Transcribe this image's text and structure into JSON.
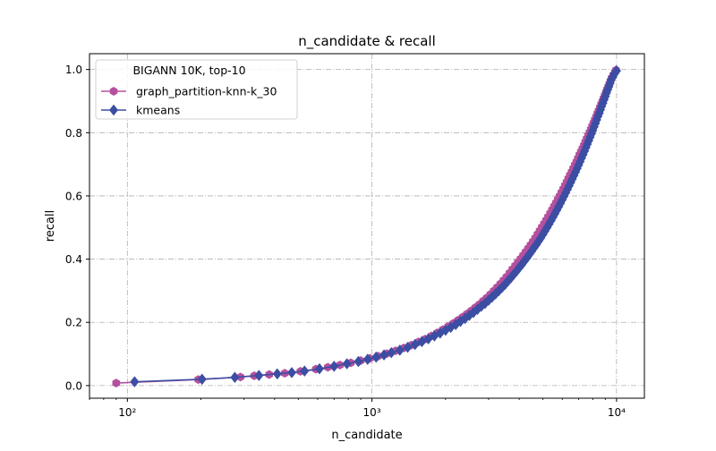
{
  "chart_data": {
    "type": "line",
    "title": "n_candidate & recall",
    "xlabel": "n_candidate",
    "ylabel": "recall",
    "xscale": "log",
    "xlim": [
      70,
      13000
    ],
    "ylim": [
      -0.04,
      1.05
    ],
    "x_ticks": [
      {
        "value": 100,
        "label": "10²"
      },
      {
        "value": 1000,
        "label": "10³"
      },
      {
        "value": 10000,
        "label": "10⁴"
      }
    ],
    "y_ticks": [
      {
        "value": 0.0,
        "label": "0.0"
      },
      {
        "value": 0.2,
        "label": "0.2"
      },
      {
        "value": 0.4,
        "label": "0.4"
      },
      {
        "value": 0.6,
        "label": "0.6"
      },
      {
        "value": 0.8,
        "label": "0.8"
      },
      {
        "value": 1.0,
        "label": "1.0"
      }
    ],
    "grid": true,
    "legend": {
      "title": "BIGANN 10K, top-10",
      "placement": "top-left"
    },
    "series": [
      {
        "name": "graph_partition-knn-k_30",
        "color": "#b5509e",
        "marker": "hexagon",
        "points": [
          [
            90,
            0.008
          ],
          [
            195,
            0.019
          ],
          [
            290,
            0.027
          ],
          [
            330,
            0.031
          ],
          [
            380,
            0.035
          ],
          [
            440,
            0.039
          ],
          [
            510,
            0.045
          ],
          [
            590,
            0.052
          ],
          [
            660,
            0.058
          ],
          [
            740,
            0.065
          ],
          [
            820,
            0.072
          ],
          [
            900,
            0.079
          ],
          [
            980,
            0.086
          ],
          [
            1060,
            0.093
          ],
          [
            1150,
            0.101
          ],
          [
            1250,
            0.11
          ],
          [
            1350,
            0.119
          ],
          [
            1450,
            0.128
          ],
          [
            1550,
            0.138
          ],
          [
            1650,
            0.147
          ],
          [
            1750,
            0.157
          ],
          [
            1850,
            0.167
          ],
          [
            1950,
            0.177
          ],
          [
            2050,
            0.187
          ],
          [
            2150,
            0.197
          ],
          [
            2250,
            0.207
          ],
          [
            2350,
            0.217
          ],
          [
            2450,
            0.227
          ],
          [
            2550,
            0.237
          ],
          [
            2650,
            0.247
          ],
          [
            2750,
            0.257
          ],
          [
            2850,
            0.268
          ],
          [
            2950,
            0.278
          ],
          [
            3050,
            0.289
          ],
          [
            3150,
            0.3
          ],
          [
            3250,
            0.311
          ],
          [
            3350,
            0.322
          ],
          [
            3450,
            0.333
          ],
          [
            3550,
            0.344
          ],
          [
            3650,
            0.356
          ],
          [
            3750,
            0.368
          ],
          [
            3850,
            0.379
          ],
          [
            3950,
            0.39
          ],
          [
            4050,
            0.401
          ],
          [
            4150,
            0.412
          ],
          [
            4250,
            0.423
          ],
          [
            4350,
            0.434
          ],
          [
            4450,
            0.445
          ],
          [
            4550,
            0.456
          ],
          [
            4650,
            0.467
          ],
          [
            4750,
            0.479
          ],
          [
            4850,
            0.49
          ],
          [
            4950,
            0.501
          ],
          [
            5050,
            0.512
          ],
          [
            5150,
            0.523
          ],
          [
            5250,
            0.534
          ],
          [
            5350,
            0.545
          ],
          [
            5450,
            0.556
          ],
          [
            5550,
            0.567
          ],
          [
            5650,
            0.578
          ],
          [
            5750,
            0.589
          ],
          [
            5850,
            0.6
          ],
          [
            5950,
            0.611
          ],
          [
            6050,
            0.622
          ],
          [
            6150,
            0.633
          ],
          [
            6250,
            0.644
          ],
          [
            6350,
            0.655
          ],
          [
            6450,
            0.666
          ],
          [
            6550,
            0.676
          ],
          [
            6650,
            0.687
          ],
          [
            6750,
            0.698
          ],
          [
            6850,
            0.708
          ],
          [
            6950,
            0.719
          ],
          [
            7050,
            0.73
          ],
          [
            7150,
            0.74
          ],
          [
            7250,
            0.75
          ],
          [
            7350,
            0.76
          ],
          [
            7450,
            0.771
          ],
          [
            7550,
            0.781
          ],
          [
            7650,
            0.791
          ],
          [
            7750,
            0.801
          ],
          [
            7850,
            0.811
          ],
          [
            7950,
            0.821
          ],
          [
            8050,
            0.831
          ],
          [
            8150,
            0.841
          ],
          [
            8250,
            0.851
          ],
          [
            8350,
            0.861
          ],
          [
            8450,
            0.87
          ],
          [
            8550,
            0.88
          ],
          [
            8650,
            0.89
          ],
          [
            8750,
            0.899
          ],
          [
            8850,
            0.909
          ],
          [
            8950,
            0.918
          ],
          [
            9050,
            0.928
          ],
          [
            9150,
            0.937
          ],
          [
            9250,
            0.946
          ],
          [
            9350,
            0.955
          ],
          [
            9450,
            0.964
          ],
          [
            9550,
            0.973
          ],
          [
            9700,
            0.983
          ],
          [
            9850,
            0.992
          ],
          [
            9950,
            0.998
          ]
        ]
      },
      {
        "name": "kmeans",
        "color": "#3b4ea3",
        "marker": "diamond",
        "points": [
          [
            107,
            0.012
          ],
          [
            202,
            0.02
          ],
          [
            275,
            0.026
          ],
          [
            345,
            0.032
          ],
          [
            410,
            0.037
          ],
          [
            470,
            0.041
          ],
          [
            530,
            0.046
          ],
          [
            610,
            0.053
          ],
          [
            700,
            0.061
          ],
          [
            790,
            0.069
          ],
          [
            880,
            0.076
          ],
          [
            960,
            0.083
          ],
          [
            1040,
            0.09
          ],
          [
            1120,
            0.097
          ],
          [
            1200,
            0.104
          ],
          [
            1300,
            0.112
          ],
          [
            1400,
            0.121
          ],
          [
            1500,
            0.13
          ],
          [
            1600,
            0.139
          ],
          [
            1700,
            0.148
          ],
          [
            1800,
            0.157
          ],
          [
            1900,
            0.166
          ],
          [
            2000,
            0.175
          ],
          [
            2100,
            0.184
          ],
          [
            2200,
            0.193
          ],
          [
            2300,
            0.203
          ],
          [
            2400,
            0.212
          ],
          [
            2500,
            0.222
          ],
          [
            2600,
            0.231
          ],
          [
            2700,
            0.241
          ],
          [
            2800,
            0.251
          ],
          [
            2900,
            0.26
          ],
          [
            3000,
            0.27
          ],
          [
            3100,
            0.28
          ],
          [
            3200,
            0.29
          ],
          [
            3300,
            0.3
          ],
          [
            3400,
            0.31
          ],
          [
            3500,
            0.32
          ],
          [
            3600,
            0.331
          ],
          [
            3700,
            0.341
          ],
          [
            3800,
            0.352
          ],
          [
            3900,
            0.362
          ],
          [
            4000,
            0.373
          ],
          [
            4100,
            0.383
          ],
          [
            4200,
            0.394
          ],
          [
            4300,
            0.404
          ],
          [
            4400,
            0.415
          ],
          [
            4500,
            0.425
          ],
          [
            4600,
            0.436
          ],
          [
            4700,
            0.446
          ],
          [
            4800,
            0.457
          ],
          [
            4900,
            0.467
          ],
          [
            5000,
            0.478
          ],
          [
            5100,
            0.489
          ],
          [
            5200,
            0.5
          ],
          [
            5300,
            0.511
          ],
          [
            5400,
            0.522
          ],
          [
            5500,
            0.533
          ],
          [
            5600,
            0.544
          ],
          [
            5700,
            0.555
          ],
          [
            5800,
            0.566
          ],
          [
            5900,
            0.577
          ],
          [
            6000,
            0.588
          ],
          [
            6100,
            0.599
          ],
          [
            6200,
            0.61
          ],
          [
            6300,
            0.621
          ],
          [
            6400,
            0.632
          ],
          [
            6500,
            0.643
          ],
          [
            6600,
            0.654
          ],
          [
            6700,
            0.665
          ],
          [
            6800,
            0.676
          ],
          [
            6900,
            0.687
          ],
          [
            7000,
            0.698
          ],
          [
            7100,
            0.709
          ],
          [
            7200,
            0.72
          ],
          [
            7300,
            0.731
          ],
          [
            7400,
            0.742
          ],
          [
            7500,
            0.753
          ],
          [
            7600,
            0.764
          ],
          [
            7700,
            0.775
          ],
          [
            7800,
            0.786
          ],
          [
            7900,
            0.797
          ],
          [
            8000,
            0.808
          ],
          [
            8100,
            0.819
          ],
          [
            8200,
            0.83
          ],
          [
            8300,
            0.841
          ],
          [
            8400,
            0.852
          ],
          [
            8500,
            0.862
          ],
          [
            8600,
            0.873
          ],
          [
            8700,
            0.884
          ],
          [
            8800,
            0.894
          ],
          [
            8900,
            0.905
          ],
          [
            9000,
            0.915
          ],
          [
            9100,
            0.926
          ],
          [
            9200,
            0.936
          ],
          [
            9300,
            0.946
          ],
          [
            9400,
            0.956
          ],
          [
            9500,
            0.966
          ],
          [
            9650,
            0.976
          ],
          [
            9800,
            0.986
          ],
          [
            10000,
            0.996
          ]
        ]
      }
    ]
  }
}
